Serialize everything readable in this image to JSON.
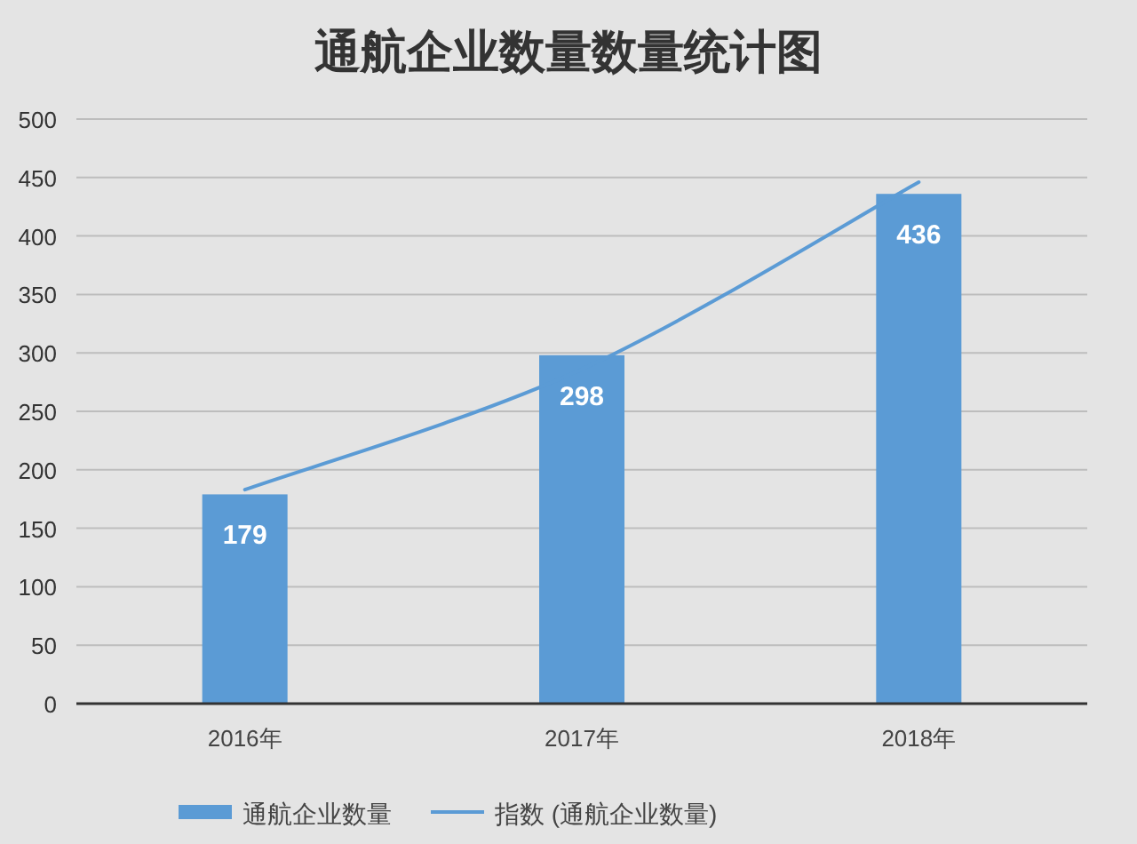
{
  "chart_data": {
    "type": "bar",
    "title": "通航企业数量数量统计图",
    "categories": [
      "2016年",
      "2017年",
      "2018年"
    ],
    "series": [
      {
        "name": "通航企业数量",
        "color": "#5b9bd5",
        "values": [
          179,
          298,
          436
        ],
        "value_labels": [
          "179",
          "298",
          "436"
        ]
      },
      {
        "name": "指数 (通航企业数量)",
        "type": "line",
        "color": "#5b9bd5",
        "values": [
          183,
          286,
          446
        ]
      }
    ],
    "ylim": [
      0,
      500
    ],
    "yticks": [
      0,
      50,
      100,
      150,
      200,
      250,
      300,
      350,
      400,
      450,
      500
    ],
    "grid": "y",
    "legend": "bottom"
  }
}
